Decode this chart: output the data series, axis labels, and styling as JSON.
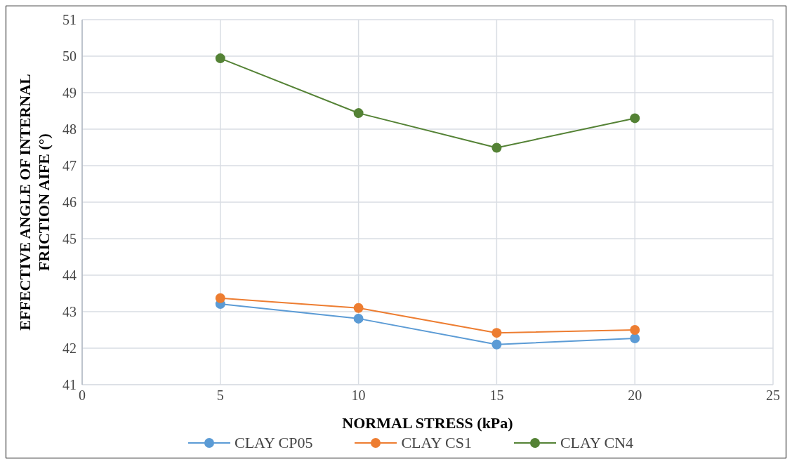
{
  "chart_data": {
    "type": "line",
    "xlabel": "NORMAL STRESS (kPa)",
    "ylabel": "EFFECTIVE ANGLE OF INTERNAL FRICTION AIFE (°)",
    "x": [
      5,
      10,
      15,
      20
    ],
    "series": [
      {
        "name": "CLAY CP05",
        "color": "#5b9bd5",
        "values": [
          43.21,
          42.81,
          42.1,
          42.27
        ]
      },
      {
        "name": "CLAY CS1",
        "color": "#ed7d31",
        "values": [
          43.37,
          43.1,
          42.42,
          42.5
        ]
      },
      {
        "name": "CLAY CN4",
        "color": "#548235",
        "values": [
          49.94,
          48.44,
          47.49,
          48.3
        ]
      }
    ],
    "xlim": [
      0,
      25
    ],
    "xticks": [
      0,
      5,
      10,
      15,
      20,
      25
    ],
    "ylim": [
      41,
      51
    ],
    "yticks": [
      41,
      42,
      43,
      44,
      45,
      46,
      47,
      48,
      49,
      50,
      51
    ],
    "grid": true,
    "legend": "bottom",
    "marker": "circle",
    "line_style": "solid"
  }
}
